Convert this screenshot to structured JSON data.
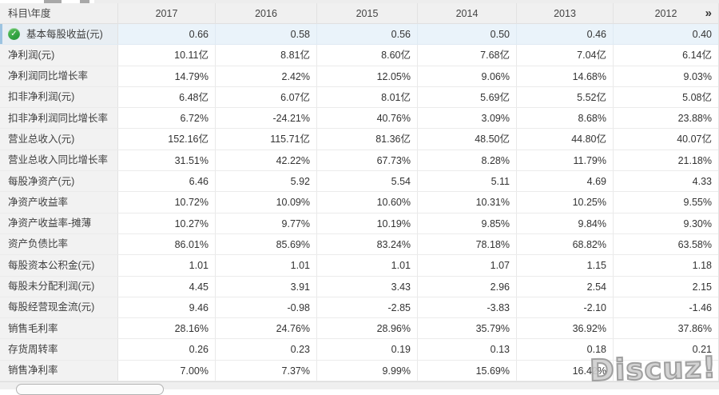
{
  "table": {
    "corner_header": "科目\\年度",
    "years": [
      "2017",
      "2016",
      "2015",
      "2014",
      "2013",
      "2012"
    ],
    "more_label": "»",
    "rows": [
      {
        "label": "基本每股收益(元)",
        "selected": true,
        "values": [
          "0.66",
          "0.58",
          "0.56",
          "0.50",
          "0.46",
          "0.40"
        ]
      },
      {
        "label": "净利润(元)",
        "selected": false,
        "values": [
          "10.11亿",
          "8.81亿",
          "8.60亿",
          "7.68亿",
          "7.04亿",
          "6.14亿"
        ]
      },
      {
        "label": "净利润同比增长率",
        "selected": false,
        "values": [
          "14.79%",
          "2.42%",
          "12.05%",
          "9.06%",
          "14.68%",
          "9.03%"
        ]
      },
      {
        "label": "扣非净利润(元)",
        "selected": false,
        "values": [
          "6.48亿",
          "6.07亿",
          "8.01亿",
          "5.69亿",
          "5.52亿",
          "5.08亿"
        ]
      },
      {
        "label": "扣非净利润同比增长率",
        "selected": false,
        "values": [
          "6.72%",
          "-24.21%",
          "40.76%",
          "3.09%",
          "8.68%",
          "23.88%"
        ]
      },
      {
        "label": "营业总收入(元)",
        "selected": false,
        "values": [
          "152.16亿",
          "115.71亿",
          "81.36亿",
          "48.50亿",
          "44.80亿",
          "40.07亿"
        ]
      },
      {
        "label": "营业总收入同比增长率",
        "selected": false,
        "values": [
          "31.51%",
          "42.22%",
          "67.73%",
          "8.28%",
          "11.79%",
          "21.18%"
        ]
      },
      {
        "label": "每股净资产(元)",
        "selected": false,
        "values": [
          "6.46",
          "5.92",
          "5.54",
          "5.11",
          "4.69",
          "4.33"
        ]
      },
      {
        "label": "净资产收益率",
        "selected": false,
        "values": [
          "10.72%",
          "10.09%",
          "10.60%",
          "10.31%",
          "10.25%",
          "9.55%"
        ]
      },
      {
        "label": "净资产收益率-摊薄",
        "selected": false,
        "values": [
          "10.27%",
          "9.77%",
          "10.19%",
          "9.85%",
          "9.84%",
          "9.30%"
        ]
      },
      {
        "label": "资产负债比率",
        "selected": false,
        "values": [
          "86.01%",
          "85.69%",
          "83.24%",
          "78.18%",
          "68.82%",
          "63.58%"
        ]
      },
      {
        "label": "每股资本公积金(元)",
        "selected": false,
        "values": [
          "1.01",
          "1.01",
          "1.01",
          "1.07",
          "1.15",
          "1.18"
        ]
      },
      {
        "label": "每股未分配利润(元)",
        "selected": false,
        "values": [
          "4.45",
          "3.91",
          "3.43",
          "2.96",
          "2.54",
          "2.15"
        ]
      },
      {
        "label": "每股经营现金流(元)",
        "selected": false,
        "values": [
          "9.46",
          "-0.98",
          "-2.85",
          "-3.83",
          "-2.10",
          "-1.46"
        ]
      },
      {
        "label": "销售毛利率",
        "selected": false,
        "values": [
          "28.16%",
          "24.76%",
          "28.96%",
          "35.79%",
          "36.92%",
          "37.86%"
        ]
      },
      {
        "label": "存货周转率",
        "selected": false,
        "values": [
          "0.26",
          "0.23",
          "0.19",
          "0.13",
          "0.18",
          "0.21"
        ]
      },
      {
        "label": "销售净利率",
        "selected": false,
        "values": [
          "7.00%",
          "7.37%",
          "9.99%",
          "15.69%",
          "16.42%",
          ""
        ]
      }
    ],
    "check_icon_glyph": "✓"
  },
  "watermark": "Discuz!",
  "colors": {
    "header_bg": "#f0f0f0",
    "label_col_bg": "#f2f2f2",
    "selected_row_bg": "#eaf3fa",
    "selected_label_bg": "#e8eef3",
    "check_icon_green": "#2e9e3f",
    "border": "#e3e3e3"
  }
}
